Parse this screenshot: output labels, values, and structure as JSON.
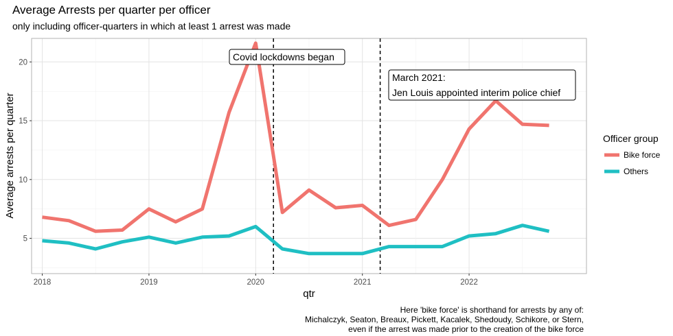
{
  "title": "Average Arrests per quarter per officer",
  "subtitle": "only including officer-quarters in which at least 1 arrest was made",
  "caption": [
    "Here 'bike force' is shorthand for arrests by any of:",
    "Michalczyk, Seaton, Breaux, Pickett, Kacalek, Shedoudy, Schikore, or Stern,",
    "even if the arrest was made prior to the creation of the bike force"
  ],
  "legend": {
    "title": "Officer group",
    "placement": "right"
  },
  "annotations": [
    {
      "lines": [
        "Covid lockdowns began"
      ],
      "x": 2020.1667
    },
    {
      "lines": [
        "March 2021:",
        "Jen Louis appointed interim police chief"
      ],
      "x": 2021.1667
    }
  ],
  "chart_data": {
    "type": "line",
    "xlabel": "qtr",
    "ylabel": "Average arrests per quarter",
    "xlim": [
      2017.9,
      2023.1
    ],
    "ylim": [
      2.0,
      22.0
    ],
    "x_ticks": [
      2018,
      2019,
      2020,
      2021,
      2022
    ],
    "y_ticks": [
      5,
      10,
      15,
      20
    ],
    "grid": true,
    "x": [
      2018.0,
      2018.25,
      2018.5,
      2018.75,
      2019.0,
      2019.25,
      2019.5,
      2019.75,
      2020.0,
      2020.25,
      2020.5,
      2020.75,
      2021.0,
      2021.25,
      2021.5,
      2021.75,
      2022.0,
      2022.25,
      2022.5,
      2022.75
    ],
    "series": [
      {
        "name": "Bike force",
        "color": "#f0746e",
        "values": [
          6.8,
          6.5,
          5.6,
          5.7,
          7.5,
          6.4,
          7.5,
          15.7,
          21.6,
          7.2,
          9.1,
          7.6,
          7.8,
          6.1,
          6.6,
          10.0,
          14.3,
          16.7,
          14.7,
          14.6
        ]
      },
      {
        "name": "Others",
        "color": "#1fbfc3",
        "values": [
          4.8,
          4.6,
          4.1,
          4.7,
          5.1,
          4.6,
          5.1,
          5.2,
          6.0,
          4.1,
          3.7,
          3.7,
          3.7,
          4.3,
          4.3,
          4.3,
          5.2,
          5.4,
          6.1,
          5.6
        ]
      }
    ]
  }
}
